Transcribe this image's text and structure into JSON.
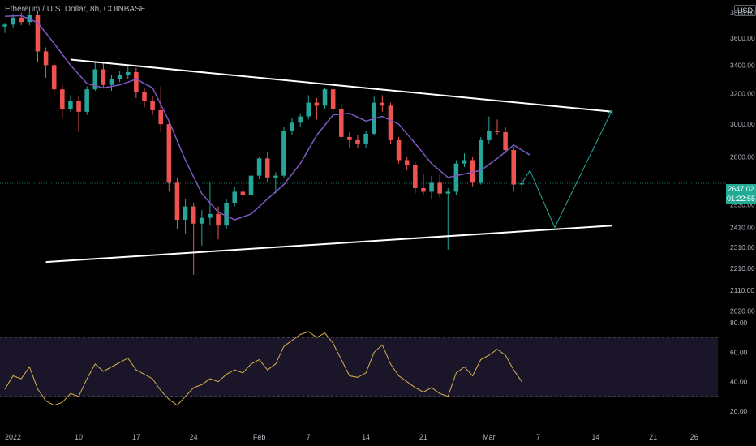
{
  "header": {
    "symbol_title": "Ethereum / U.S. Dollar, 8h, COINBASE"
  },
  "currency_button": "USD",
  "price_tag": {
    "price": "2647.02",
    "countdown": "01:22:55"
  },
  "colors": {
    "background": "#000000",
    "up": "#26a69a",
    "down": "#ef5350",
    "ma": "#7e57c2",
    "trendline": "#ffffff",
    "projection": "#26a69a",
    "rsi": "#d4b24c",
    "rsi_band": "#1a1528"
  },
  "chart_data": [
    {
      "type": "candlestick",
      "title": "Ethereum / U.S. Dollar, 8h, COINBASE",
      "price_scale": "log",
      "ylim": [
        1990,
        3850
      ],
      "y_ticks": [
        "3800.00",
        "3600.00",
        "3400.00",
        "3200.00",
        "3000.00",
        "2800.00",
        "2647.02",
        "2530.00",
        "2410.00",
        "2310.00",
        "2210.00",
        "2110.00",
        "2020.00"
      ],
      "x_tick_labels": [
        "2022",
        "10",
        "17",
        "24",
        "Feb",
        "7",
        "14",
        "21",
        "Mar",
        "7",
        "14",
        "21",
        "26"
      ],
      "x_domain": [
        "2022-01-01",
        "2022-03-28"
      ],
      "last_price": 2647.02,
      "grid": false,
      "series": [
        {
          "style": "candles",
          "values": [
            [
              "2022-01-01",
              3690,
              3720,
              3640,
              3705
            ],
            [
              "2022-01-02",
              3705,
              3790,
              3680,
              3760
            ],
            [
              "2022-01-03",
              3760,
              3800,
              3700,
              3725
            ],
            [
              "2022-01-04",
              3725,
              3810,
              3700,
              3780
            ],
            [
              "2022-01-05",
              3780,
              3820,
              3420,
              3500
            ],
            [
              "2022-01-06",
              3500,
              3530,
              3310,
              3400
            ],
            [
              "2022-01-07",
              3400,
              3420,
              3180,
              3230
            ],
            [
              "2022-01-08",
              3230,
              3260,
              3040,
              3100
            ],
            [
              "2022-01-09",
              3100,
              3190,
              3080,
              3150
            ],
            [
              "2022-01-10",
              3150,
              3180,
              2950,
              3080
            ],
            [
              "2022-01-11",
              3080,
              3250,
              3060,
              3230
            ],
            [
              "2022-01-12",
              3230,
              3420,
              3220,
              3370
            ],
            [
              "2022-01-13",
              3370,
              3420,
              3240,
              3260
            ],
            [
              "2022-01-14",
              3260,
              3330,
              3220,
              3300
            ],
            [
              "2022-01-15",
              3300,
              3360,
              3280,
              3330
            ],
            [
              "2022-01-16",
              3330,
              3390,
              3300,
              3350
            ],
            [
              "2022-01-17",
              3350,
              3380,
              3170,
              3210
            ],
            [
              "2022-01-18",
              3210,
              3240,
              3110,
              3150
            ],
            [
              "2022-01-19",
              3150,
              3180,
              3060,
              3090
            ],
            [
              "2022-01-20",
              3090,
              3250,
              2950,
              3000
            ],
            [
              "2022-01-21",
              3000,
              3020,
              2600,
              2650
            ],
            [
              "2022-01-22",
              2650,
              2680,
              2400,
              2450
            ],
            [
              "2022-01-23",
              2450,
              2560,
              2380,
              2520
            ],
            [
              "2022-01-24",
              2520,
              2540,
              2180,
              2430
            ],
            [
              "2022-01-25",
              2430,
              2500,
              2320,
              2460
            ],
            [
              "2022-01-26",
              2460,
              2650,
              2420,
              2480
            ],
            [
              "2022-01-27",
              2480,
              2520,
              2350,
              2420
            ],
            [
              "2022-01-28",
              2420,
              2560,
              2400,
              2540
            ],
            [
              "2022-01-29",
              2540,
              2630,
              2520,
              2600
            ],
            [
              "2022-01-30",
              2600,
              2640,
              2550,
              2580
            ],
            [
              "2022-01-31",
              2580,
              2700,
              2560,
              2690
            ],
            [
              "2022-02-01",
              2690,
              2800,
              2670,
              2790
            ],
            [
              "2022-02-02",
              2790,
              2830,
              2650,
              2680
            ],
            [
              "2022-02-03",
              2680,
              2710,
              2590,
              2690
            ],
            [
              "2022-02-04",
              2690,
              2980,
              2680,
              2960
            ],
            [
              "2022-02-05",
              2960,
              3040,
              2930,
              3010
            ],
            [
              "2022-02-06",
              3010,
              3070,
              2980,
              3050
            ],
            [
              "2022-02-07",
              3050,
              3190,
              3030,
              3140
            ],
            [
              "2022-02-08",
              3140,
              3170,
              3030,
              3120
            ],
            [
              "2022-02-09",
              3120,
              3240,
              3100,
              3230
            ],
            [
              "2022-02-10",
              3230,
              3280,
              3080,
              3100
            ],
            [
              "2022-02-11",
              3100,
              3130,
              2900,
              2920
            ],
            [
              "2022-02-12",
              2920,
              2950,
              2850,
              2900
            ],
            [
              "2022-02-13",
              2900,
              2930,
              2850,
              2880
            ],
            [
              "2022-02-14",
              2880,
              2960,
              2850,
              2940
            ],
            [
              "2022-02-15",
              2940,
              3180,
              2930,
              3140
            ],
            [
              "2022-02-16",
              3140,
              3190,
              3080,
              3120
            ],
            [
              "2022-02-17",
              3120,
              3140,
              2880,
              2900
            ],
            [
              "2022-02-18",
              2900,
              2920,
              2760,
              2780
            ],
            [
              "2022-02-19",
              2780,
              2800,
              2720,
              2750
            ],
            [
              "2022-02-20",
              2750,
              2770,
              2590,
              2620
            ],
            [
              "2022-02-21",
              2620,
              2700,
              2580,
              2600
            ],
            [
              "2022-02-22",
              2600,
              2690,
              2560,
              2650
            ],
            [
              "2022-02-23",
              2650,
              2700,
              2570,
              2590
            ],
            [
              "2022-02-24",
              2590,
              2620,
              2300,
              2600
            ],
            [
              "2022-02-25",
              2600,
              2780,
              2580,
              2760
            ],
            [
              "2022-02-26",
              2760,
              2820,
              2740,
              2780
            ],
            [
              "2022-02-27",
              2780,
              2800,
              2630,
              2650
            ],
            [
              "2022-02-28",
              2650,
              2920,
              2640,
              2900
            ],
            [
              "2022-03-01",
              2900,
              3050,
              2880,
              2960
            ],
            [
              "2022-03-02",
              2960,
              3030,
              2930,
              2950
            ],
            [
              "2022-03-03",
              2950,
              2980,
              2820,
              2840
            ],
            [
              "2022-03-04",
              2840,
              2860,
              2600,
              2640
            ],
            [
              "2022-03-05",
              2640,
              2680,
              2600,
              2647.02
            ]
          ]
        },
        {
          "name": "MA",
          "style": "line",
          "values": [
            [
              "2022-01-01",
              3770
            ],
            [
              "2022-01-03",
              3775
            ],
            [
              "2022-01-05",
              3720
            ],
            [
              "2022-01-07",
              3560
            ],
            [
              "2022-01-09",
              3400
            ],
            [
              "2022-01-11",
              3270
            ],
            [
              "2022-01-13",
              3240
            ],
            [
              "2022-01-15",
              3260
            ],
            [
              "2022-01-17",
              3300
            ],
            [
              "2022-01-19",
              3240
            ],
            [
              "2022-01-21",
              3020
            ],
            [
              "2022-01-23",
              2780
            ],
            [
              "2022-01-25",
              2590
            ],
            [
              "2022-01-27",
              2490
            ],
            [
              "2022-01-29",
              2450
            ],
            [
              "2022-01-31",
              2480
            ],
            [
              "2022-02-02",
              2560
            ],
            [
              "2022-02-04",
              2640
            ],
            [
              "2022-02-06",
              2760
            ],
            [
              "2022-02-08",
              2930
            ],
            [
              "2022-02-10",
              3060
            ],
            [
              "2022-02-12",
              3070
            ],
            [
              "2022-02-14",
              3020
            ],
            [
              "2022-02-16",
              3050
            ],
            [
              "2022-02-18",
              3000
            ],
            [
              "2022-02-20",
              2880
            ],
            [
              "2022-02-22",
              2760
            ],
            [
              "2022-02-24",
              2680
            ],
            [
              "2022-02-26",
              2700
            ],
            [
              "2022-02-28",
              2720
            ],
            [
              "2022-03-02",
              2790
            ],
            [
              "2022-03-04",
              2870
            ],
            [
              "2022-03-06",
              2810
            ]
          ]
        },
        {
          "name": "Upper trendline",
          "style": "line",
          "values": [
            [
              "2022-01-09",
              3440
            ],
            [
              "2022-03-16",
              3080
            ]
          ]
        },
        {
          "name": "Lower trendline",
          "style": "line",
          "values": [
            [
              "2022-01-06",
              2240
            ],
            [
              "2022-03-16",
              2420
            ]
          ]
        },
        {
          "name": "Projection",
          "style": "line",
          "values": [
            [
              "2022-03-05",
              2647
            ],
            [
              "2022-03-06",
              2720
            ],
            [
              "2022-03-09",
              2410
            ],
            [
              "2022-03-16",
              3090
            ]
          ]
        }
      ]
    },
    {
      "type": "line",
      "title": "RSI",
      "ylim": [
        14,
        80
      ],
      "y_ticks": [
        "80.00",
        "60.00",
        "40.00",
        "20.00"
      ],
      "band": [
        30,
        70
      ],
      "midline": 50,
      "series": [
        {
          "values": [
            [
              "2022-01-01",
              35
            ],
            [
              "2022-01-02",
              44
            ],
            [
              "2022-01-03",
              42
            ],
            [
              "2022-01-04",
              50
            ],
            [
              "2022-01-05",
              35
            ],
            [
              "2022-01-06",
              27
            ],
            [
              "2022-01-07",
              24
            ],
            [
              "2022-01-08",
              26
            ],
            [
              "2022-01-09",
              32
            ],
            [
              "2022-01-10",
              30
            ],
            [
              "2022-01-11",
              42
            ],
            [
              "2022-01-12",
              52
            ],
            [
              "2022-01-13",
              47
            ],
            [
              "2022-01-14",
              50
            ],
            [
              "2022-01-15",
              53
            ],
            [
              "2022-01-16",
              56
            ],
            [
              "2022-01-17",
              48
            ],
            [
              "2022-01-18",
              45
            ],
            [
              "2022-01-19",
              42
            ],
            [
              "2022-01-20",
              34
            ],
            [
              "2022-01-21",
              28
            ],
            [
              "2022-01-22",
              24
            ],
            [
              "2022-01-23",
              30
            ],
            [
              "2022-01-24",
              36
            ],
            [
              "2022-01-25",
              38
            ],
            [
              "2022-01-26",
              42
            ],
            [
              "2022-01-27",
              40
            ],
            [
              "2022-01-28",
              45
            ],
            [
              "2022-01-29",
              48
            ],
            [
              "2022-01-30",
              46
            ],
            [
              "2022-01-31",
              52
            ],
            [
              "2022-02-01",
              55
            ],
            [
              "2022-02-02",
              48
            ],
            [
              "2022-02-03",
              52
            ],
            [
              "2022-02-04",
              64
            ],
            [
              "2022-02-05",
              68
            ],
            [
              "2022-02-06",
              72
            ],
            [
              "2022-02-07",
              74
            ],
            [
              "2022-02-08",
              70
            ],
            [
              "2022-02-09",
              73
            ],
            [
              "2022-02-10",
              66
            ],
            [
              "2022-02-11",
              55
            ],
            [
              "2022-02-12",
              44
            ],
            [
              "2022-02-13",
              43
            ],
            [
              "2022-02-14",
              46
            ],
            [
              "2022-02-15",
              60
            ],
            [
              "2022-02-16",
              65
            ],
            [
              "2022-02-17",
              52
            ],
            [
              "2022-02-18",
              44
            ],
            [
              "2022-02-19",
              40
            ],
            [
              "2022-02-20",
              36
            ],
            [
              "2022-02-21",
              33
            ],
            [
              "2022-02-22",
              36
            ],
            [
              "2022-02-23",
              32
            ],
            [
              "2022-02-24",
              30
            ],
            [
              "2022-02-25",
              46
            ],
            [
              "2022-02-26",
              50
            ],
            [
              "2022-02-27",
              44
            ],
            [
              "2022-02-28",
              55
            ],
            [
              "2022-03-01",
              58
            ],
            [
              "2022-03-02",
              62
            ],
            [
              "2022-03-03",
              58
            ],
            [
              "2022-03-04",
              48
            ],
            [
              "2022-03-05",
              40
            ]
          ]
        }
      ]
    }
  ]
}
